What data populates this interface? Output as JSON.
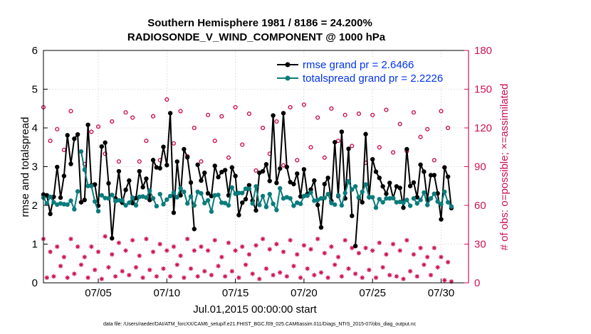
{
  "colors": {
    "rmse": "#000000",
    "spread": "#0b7b7b",
    "obs": "#cc1155",
    "legend_text": "#0033ee",
    "grid": "#bbbbbb"
  },
  "footer": "data file: /Users/raeder/DAI/ATM_forcXX/CAM6_setup/f.e21.FHIST_BGC.f09_025.CAM6assim.011/Diags_NTrS_2015-07/obs_diag_output.nc",
  "chart_data": {
    "type": "line",
    "title": "Southern Hemisphere 1981 / 8186 = 24.200%",
    "subtitle": "RADIOSONDE_V_WIND_COMPONENT @ 1000 hPa",
    "xlabel": "Jul.01,2015 00:00:00 start",
    "ylabel": "rmse and totalspread",
    "ylabel_right": "# of obs: o=possible; ×=assimilated",
    "xlim": [
      0,
      124
    ],
    "ylim": [
      0,
      6
    ],
    "ylim_right": [
      0,
      180
    ],
    "xticks": [
      16,
      36,
      56,
      76,
      96,
      116
    ],
    "xtick_labels": [
      "07/05",
      "07/10",
      "07/15",
      "07/20",
      "07/25",
      "07/30"
    ],
    "yticks": [
      0,
      1,
      2,
      3,
      4,
      5,
      6
    ],
    "yticks_right": [
      0,
      30,
      60,
      90,
      120,
      150,
      180
    ],
    "legend": [
      "rmse grand pr = 2.6466",
      "totalspread grand pr = 2.2226"
    ],
    "series": [
      {
        "name": "rmse",
        "x": [
          0,
          1,
          2,
          3,
          4,
          5,
          6,
          7,
          8,
          9,
          10,
          11,
          12,
          13,
          14,
          15,
          16,
          17,
          18,
          19,
          20,
          21,
          22,
          23,
          24,
          25,
          26,
          27,
          28,
          29,
          30,
          31,
          32,
          33,
          34,
          35,
          36,
          37,
          38,
          39,
          40,
          41,
          42,
          43,
          44,
          45,
          46,
          47,
          48,
          49,
          50,
          51,
          52,
          53,
          54,
          55,
          56,
          57,
          58,
          59,
          60,
          61,
          62,
          63,
          64,
          65,
          66,
          67,
          68,
          69,
          70,
          71,
          72,
          73,
          74,
          75,
          76,
          77,
          78,
          79,
          80,
          81,
          82,
          83,
          84,
          85,
          86,
          87,
          88,
          89,
          90,
          91,
          92,
          93,
          94,
          95,
          96,
          97,
          98,
          99,
          100,
          101,
          102,
          103,
          104,
          105,
          106,
          107,
          108,
          109,
          110,
          111,
          112,
          113,
          114,
          115,
          116,
          117,
          118,
          119
        ],
        "values": [
          2.28,
          2.26,
          1.78,
          2.22,
          2.99,
          2.2,
          2.76,
          3.81,
          3.07,
          3.72,
          3.83,
          2.08,
          2.14,
          4.08,
          2.52,
          2.54,
          1.99,
          3.52,
          3.62,
          2.57,
          1.15,
          2.18,
          2.88,
          2.07,
          2.4,
          2.64,
          2.06,
          2.19,
          2.88,
          2.47,
          2.69,
          2.14,
          3.17,
          2.98,
          2.96,
          3.51,
          3.04,
          4.38,
          1.81,
          3.13,
          2.26,
          3.45,
          3.24,
          2.59,
          1.39,
          3.05,
          2.64,
          2.84,
          2.31,
          2.24,
          3.02,
          2.73,
          2.86,
          2.91,
          2.26,
          2.98,
          2.76,
          1.75,
          2.07,
          2.16,
          2.52,
          2.12,
          1.87,
          2.84,
          2.88,
          3.06,
          2.63,
          4.32,
          2.58,
          2.95,
          4.38,
          2.99,
          2.6,
          2.55,
          2.82,
          2.23,
          2.93,
          2.29,
          2.41,
          2.64,
          2.01,
          1.43,
          2.55,
          2.71,
          2.11,
          3.63,
          2.24,
          3.9,
          2.18,
          3.46,
          1.73,
          0.95,
          2.2,
          2.08,
          3.84,
          2.21,
          3.19,
          2.87,
          2.71,
          2.49,
          2.3,
          2.58,
          2.19,
          2.49,
          2.45,
          1.94,
          3.45,
          2.5,
          2.59,
          2.21,
          3.05,
          2.87,
          2.14,
          2.78,
          2.78,
          2.31,
          1.64,
          2.98,
          2.74,
          1.93
        ],
        "segments": [
          [
            0,
            17
          ],
          [
            18,
            44
          ],
          [
            45,
            90
          ],
          [
            91,
            113
          ],
          [
            114,
            119
          ]
        ]
      },
      {
        "name": "totalspread",
        "x": [
          0,
          1,
          2,
          3,
          4,
          5,
          6,
          7,
          8,
          9,
          10,
          11,
          12,
          13,
          14,
          15,
          16,
          17,
          18,
          19,
          20,
          21,
          22,
          23,
          24,
          25,
          26,
          27,
          28,
          29,
          30,
          31,
          32,
          33,
          34,
          35,
          36,
          37,
          38,
          39,
          40,
          41,
          42,
          43,
          44,
          45,
          46,
          47,
          48,
          49,
          50,
          51,
          52,
          53,
          54,
          55,
          56,
          57,
          58,
          59,
          60,
          61,
          62,
          63,
          64,
          65,
          66,
          67,
          68,
          69,
          70,
          71,
          72,
          73,
          74,
          75,
          76,
          77,
          78,
          79,
          80,
          81,
          82,
          83,
          84,
          85,
          86,
          87,
          88,
          89,
          90,
          91,
          92,
          93,
          94,
          95,
          96,
          97,
          98,
          99,
          100,
          101,
          102,
          103,
          104,
          105,
          106,
          107,
          108,
          109,
          110,
          111,
          112,
          113,
          114,
          115,
          116,
          117,
          118,
          119
        ],
        "values": [
          2.2,
          2.05,
          2.22,
          2.08,
          2.02,
          2.05,
          2.03,
          2.02,
          2.12,
          1.9,
          2.36,
          3.39,
          2.92,
          2.5,
          2.5,
          2.1,
          1.85,
          2.26,
          2.19,
          2.18,
          2.27,
          2.11,
          2.13,
          2.13,
          2.0,
          2.07,
          2.2,
          2.0,
          2.22,
          2.23,
          2.2,
          2.38,
          2.18,
          1.98,
          2.29,
          2.03,
          2.15,
          2.24,
          2.33,
          2.21,
          2.44,
          2.35,
          2.05,
          2.23,
          2.0,
          2.35,
          2.31,
          2.06,
          2.13,
          1.84,
          2.26,
          2.27,
          2.07,
          2.06,
          2.0,
          2.46,
          2.3,
          2.32,
          2.32,
          2.43,
          2.43,
          2.05,
          2.49,
          2.01,
          2.24,
          1.96,
          2.29,
          2.04,
          1.88,
          2.44,
          2.18,
          2.21,
          2.18,
          1.99,
          2.07,
          2.04,
          2.24,
          2.25,
          2.33,
          2.12,
          2.14,
          2.18,
          2.19,
          2.29,
          2.06,
          2.02,
          2.26,
          2.0,
          2.32,
          2.62,
          2.41,
          2.49,
          2.21,
          2.35,
          2.54,
          2.21,
          2.21,
          1.94,
          2.16,
          2.08,
          2.18,
          2.18,
          2.19,
          2.08,
          2.09,
          2.07,
          2.14,
          1.99,
          2.18,
          2.05,
          2.14,
          2.33,
          2.01,
          2.18,
          2.3,
          2.1,
          2.03,
          2.35,
          2.08,
          1.97
        ],
        "segments": [
          [
            0,
            10
          ],
          [
            11,
            16
          ],
          [
            17,
            33
          ],
          [
            34,
            60
          ],
          [
            61,
            85
          ],
          [
            86,
            101
          ],
          [
            102,
            107
          ],
          [
            108,
            119
          ]
        ]
      }
    ],
    "obs_possible": {
      "x": [
        0,
        2,
        4,
        6,
        8,
        10,
        12,
        14,
        16,
        18,
        20,
        22,
        24,
        26,
        28,
        30,
        32,
        34,
        36,
        38,
        40,
        42,
        44,
        46,
        48,
        50,
        52,
        54,
        56,
        58,
        60,
        62,
        64,
        66,
        68,
        70,
        72,
        74,
        76,
        78,
        80,
        82,
        84,
        86,
        88,
        90,
        92,
        94,
        96,
        98,
        100,
        102,
        104,
        106,
        108,
        110,
        112,
        114,
        116,
        118
      ],
      "values": [
        136,
        110,
        119,
        103,
        133,
        115,
        92,
        117,
        121,
        100,
        125,
        94,
        132,
        128,
        94,
        110,
        129,
        95,
        142,
        108,
        133,
        98,
        120,
        94,
        130,
        110,
        129,
        97,
        136,
        107,
        131,
        87,
        120,
        100,
        125,
        91,
        136,
        95,
        138,
        105,
        128,
        97,
        135,
        110,
        130,
        106,
        131,
        93,
        130,
        105,
        134,
        101,
        123,
        102,
        132,
        113,
        119,
        95,
        133,
        120
      ]
    },
    "obs_assimilated": {
      "x": [
        0,
        1,
        2,
        3,
        4,
        5,
        6,
        7,
        8,
        9,
        10,
        11,
        12,
        13,
        14,
        15,
        16,
        17,
        18,
        19,
        20,
        21,
        22,
        23,
        24,
        25,
        26,
        27,
        28,
        29,
        30,
        31,
        32,
        33,
        34,
        35,
        36,
        37,
        38,
        39,
        40,
        41,
        42,
        43,
        44,
        45,
        46,
        47,
        48,
        49,
        50,
        51,
        52,
        53,
        54,
        55,
        56,
        57,
        58,
        59,
        60,
        61,
        62,
        63,
        64,
        65,
        66,
        67,
        68,
        69,
        70,
        71,
        72,
        73,
        74,
        75,
        76,
        77,
        78,
        79,
        80,
        81,
        82,
        83,
        84,
        85,
        86,
        87,
        88,
        89,
        90,
        91,
        92,
        93,
        94,
        95,
        96,
        97,
        98,
        99,
        100,
        101,
        102,
        103,
        104,
        105,
        106,
        107,
        108,
        109,
        110,
        111,
        112,
        113,
        114,
        115,
        116,
        117,
        118,
        119
      ],
      "values": [
        34,
        4,
        24,
        5,
        28,
        13,
        20,
        4,
        34,
        7,
        28,
        14,
        20,
        4,
        28,
        10,
        24,
        3,
        36,
        12,
        22,
        5,
        31,
        9,
        25,
        6,
        33,
        12,
        21,
        4,
        34,
        10,
        24,
        5,
        30,
        11,
        25,
        5,
        28,
        14,
        21,
        4,
        34,
        11,
        25,
        5,
        28,
        9,
        25,
        6,
        33,
        13,
        20,
        5,
        31,
        9,
        25,
        4,
        28,
        14,
        22,
        7,
        29,
        3,
        34,
        11,
        26,
        6,
        30,
        8,
        24,
        5,
        33,
        13,
        22,
        4,
        29,
        11,
        26,
        6,
        34,
        8,
        23,
        4,
        28,
        14,
        20,
        5,
        33,
        11,
        27,
        7,
        23,
        4,
        27,
        10,
        25,
        4,
        31,
        12,
        22,
        6,
        30,
        5,
        25,
        3,
        33,
        9,
        22,
        5,
        27,
        14,
        20,
        6,
        27,
        12,
        20,
        2,
        16,
        1
      ]
    }
  }
}
